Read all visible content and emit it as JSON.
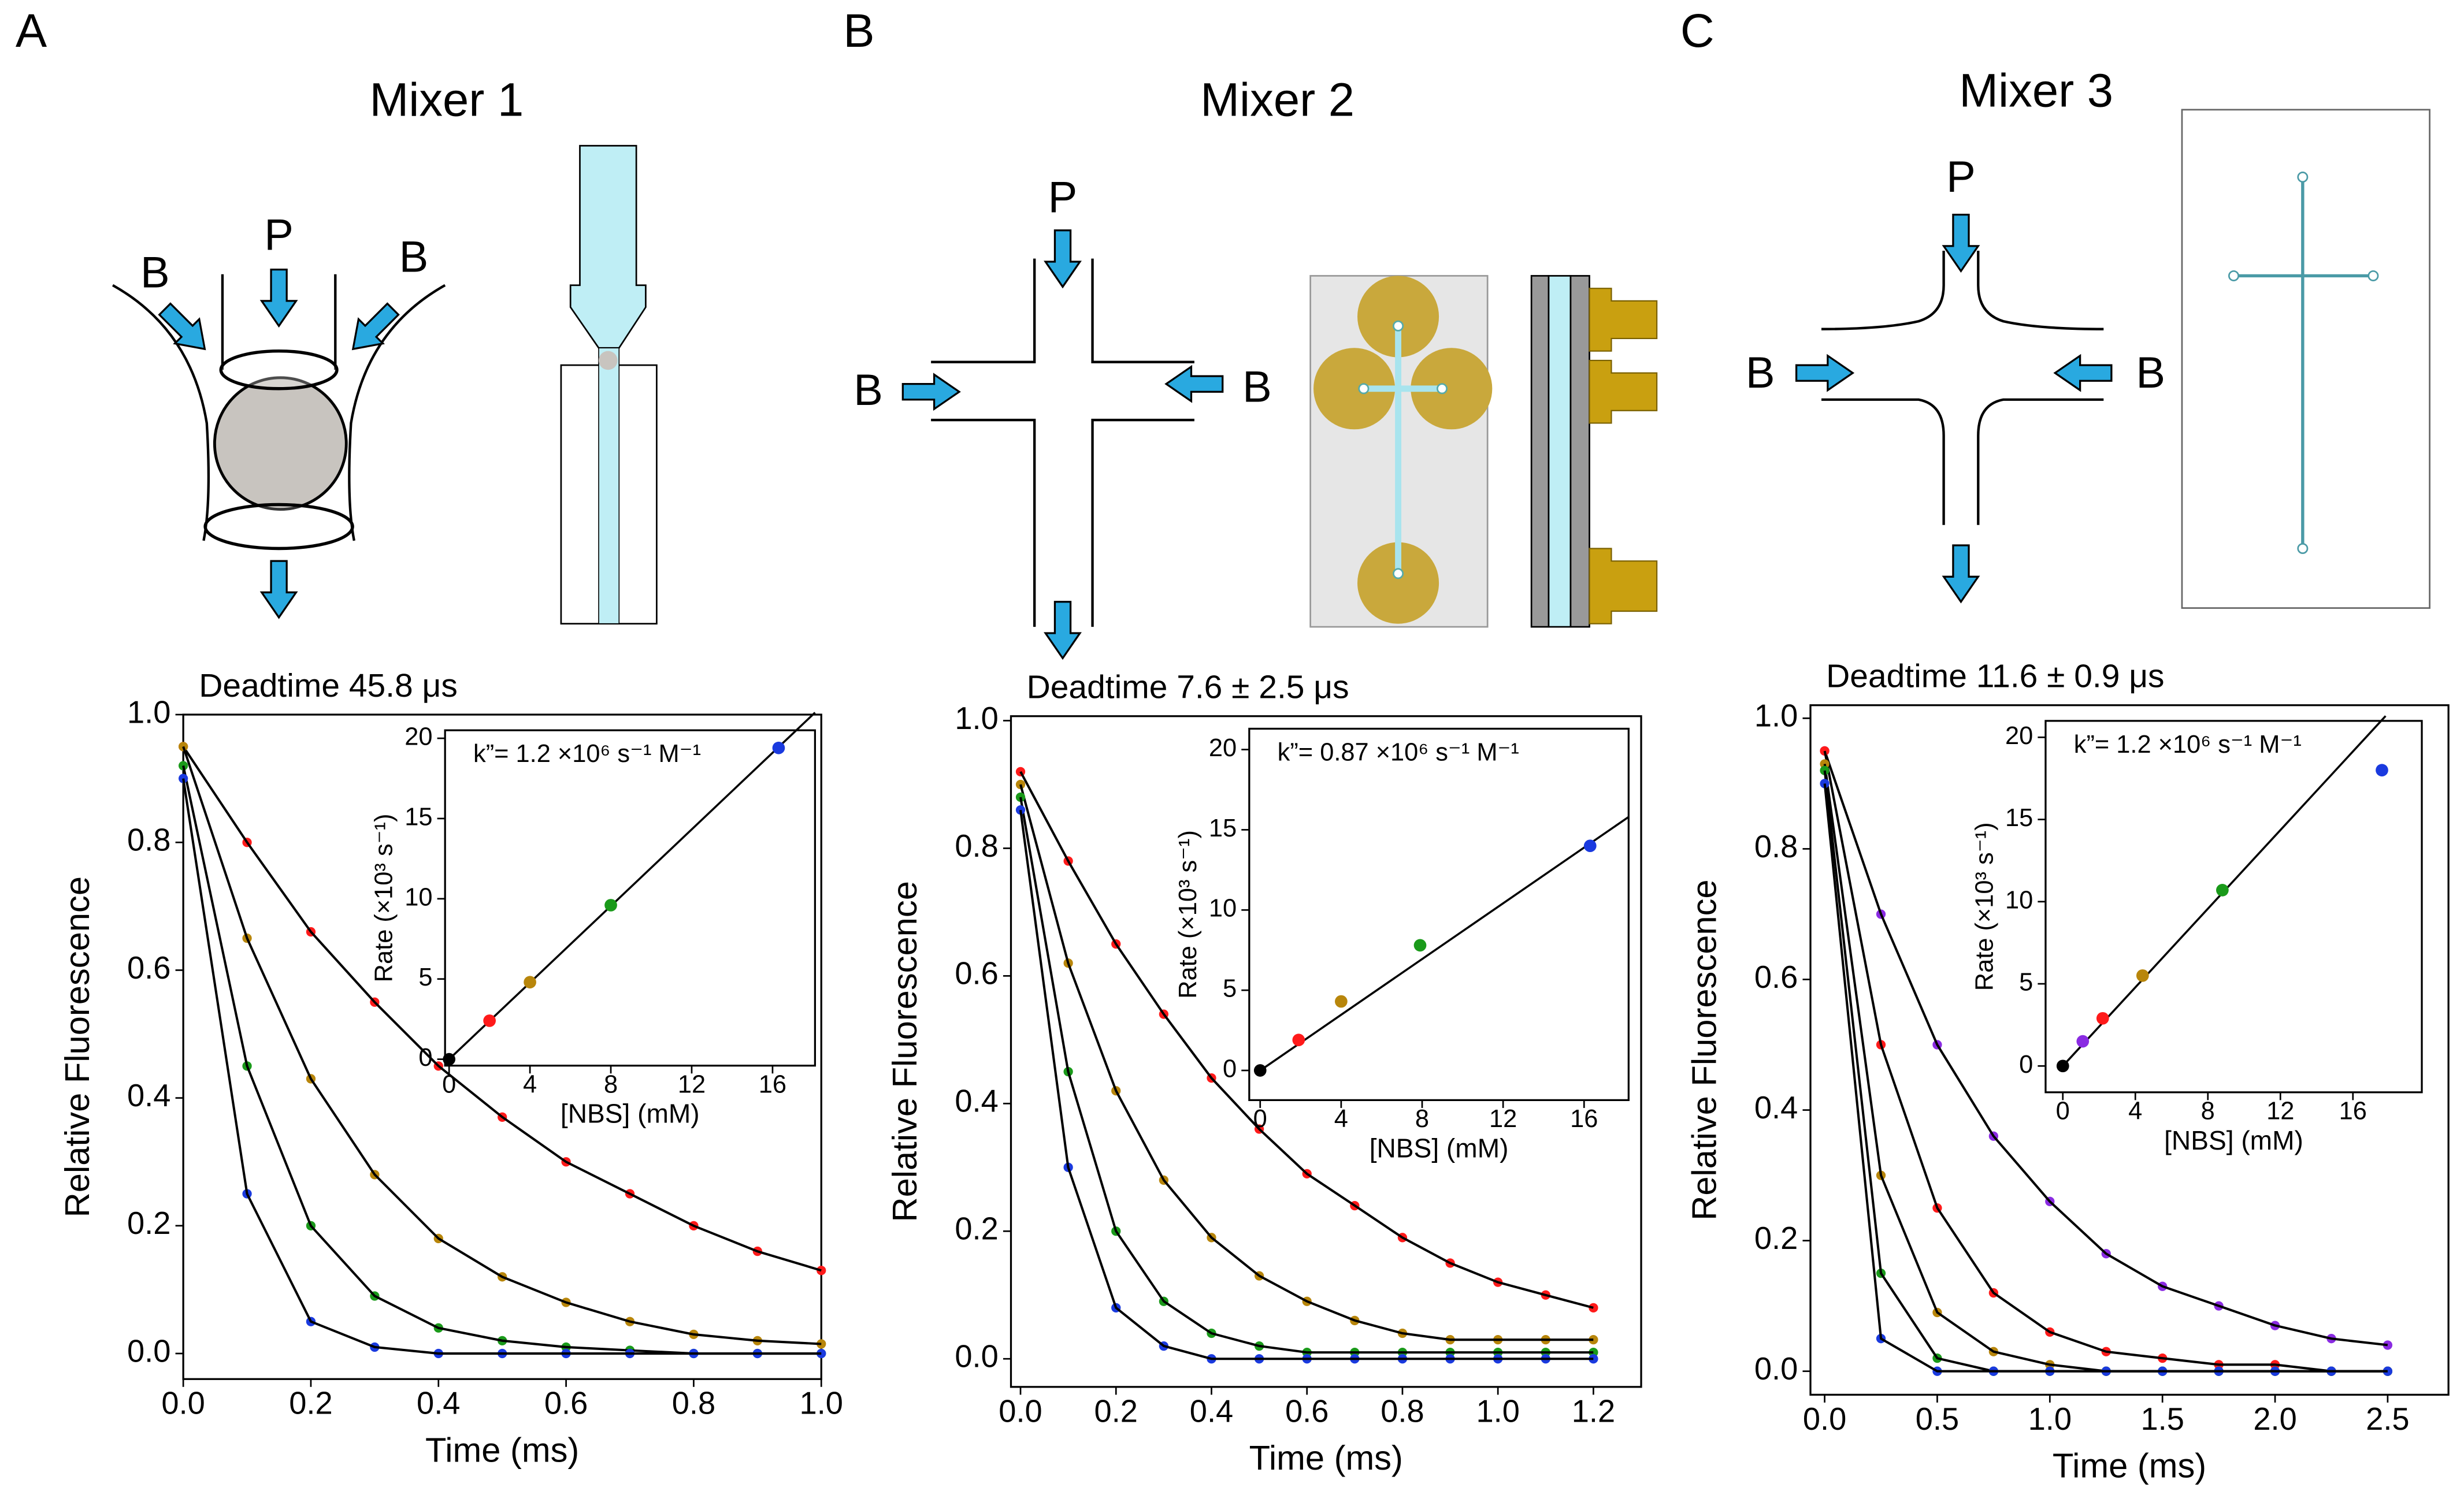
{
  "panels": [
    {
      "letter": "A",
      "heading": "Mixer 1",
      "labels": [
        "B",
        "P",
        "B"
      ]
    },
    {
      "letter": "B",
      "heading": "Mixer 2",
      "labels": [
        "B",
        "P",
        "B"
      ]
    },
    {
      "letter": "C",
      "heading": "Mixer 3",
      "labels": [
        "B",
        "P",
        "B"
      ]
    }
  ],
  "chart_data": [
    {
      "type": "line",
      "title": "Deadtime 45.8 μs",
      "xlabel": "Time (ms)",
      "ylabel": "Relative Fluorescence",
      "line_color": "#000000",
      "x": [
        0,
        0.1,
        0.2,
        0.3,
        0.4,
        0.5,
        0.6,
        0.7,
        0.8,
        0.9,
        1.0
      ],
      "series": [
        {
          "color": "#ff1a1a",
          "values": [
            0.95,
            0.8,
            0.66,
            0.55,
            0.45,
            0.37,
            0.3,
            0.25,
            0.2,
            0.16,
            0.13
          ]
        },
        {
          "color": "#b8860b",
          "values": [
            0.95,
            0.65,
            0.43,
            0.28,
            0.18,
            0.12,
            0.08,
            0.05,
            0.03,
            0.02,
            0.015
          ]
        },
        {
          "color": "#1a9a1a",
          "values": [
            0.92,
            0.45,
            0.2,
            0.09,
            0.04,
            0.02,
            0.01,
            0.005,
            0,
            0,
            0
          ]
        },
        {
          "color": "#1a3adf",
          "values": [
            0.9,
            0.25,
            0.05,
            0.01,
            0,
            0,
            0,
            0,
            0,
            0,
            0
          ]
        }
      ],
      "xlim": [
        0,
        1.0
      ],
      "ylim": [
        -0.04,
        1.0
      ],
      "xticks": [
        {
          "value": 0,
          "label": "0.0"
        },
        0.2,
        0.4,
        0.6,
        0.8,
        {
          "value": 1,
          "label": "1.0"
        }
      ],
      "yticks": [
        {
          "value": 0,
          "label": "0.0"
        },
        0.2,
        0.4,
        0.6,
        0.8,
        {
          "value": 1,
          "label": "1.0"
        }
      ]
    },
    {
      "type": "scatter",
      "annotation": "k”= 1.2 ×10⁶ s⁻¹ M⁻¹",
      "xlabel": "[NBS] (mM)",
      "ylabel": "Rate (×10³ s⁻¹)",
      "x": [
        0,
        2,
        4,
        8,
        16.3
      ],
      "values": [
        0,
        2.4,
        4.8,
        9.6,
        19.4
      ],
      "colors": [
        "#000000",
        "#ff1a1a",
        "#b8860b",
        "#1a9a1a",
        "#1a3adf"
      ],
      "fit": {
        "x": [
          0,
          18.1
        ],
        "values": [
          0,
          21.6
        ]
      },
      "xlim": [
        -0.2,
        18.1
      ],
      "ylim": [
        -0.4,
        20.5
      ],
      "xticks": [
        0,
        4,
        8,
        12,
        16
      ],
      "yticks": [
        0,
        5,
        10,
        15,
        20
      ]
    },
    {
      "type": "line",
      "title": "Deadtime 7.6 ± 2.5 μs",
      "xlabel": "Time (ms)",
      "ylabel": "Relative Fluorescence",
      "line_color": "#000000",
      "x": [
        0,
        0.1,
        0.2,
        0.3,
        0.4,
        0.5,
        0.6,
        0.7,
        0.8,
        0.9,
        1.0,
        1.1,
        1.2
      ],
      "series": [
        {
          "color": "#ff1a1a",
          "values": [
            0.92,
            0.78,
            0.65,
            0.54,
            0.44,
            0.36,
            0.29,
            0.24,
            0.19,
            0.15,
            0.12,
            0.1,
            0.08
          ]
        },
        {
          "color": "#b8860b",
          "values": [
            0.9,
            0.62,
            0.42,
            0.28,
            0.19,
            0.13,
            0.09,
            0.06,
            0.04,
            0.03,
            0.03,
            0.03,
            0.03
          ]
        },
        {
          "color": "#1a9a1a",
          "values": [
            0.88,
            0.45,
            0.2,
            0.09,
            0.04,
            0.02,
            0.01,
            0.01,
            0.01,
            0.01,
            0.01,
            0.01,
            0.01
          ]
        },
        {
          "color": "#1a3adf",
          "values": [
            0.86,
            0.3,
            0.08,
            0.02,
            0,
            0,
            0,
            0,
            0,
            0,
            0,
            0,
            0
          ]
        }
      ],
      "xlim": [
        -0.02,
        1.3
      ],
      "ylim": [
        -0.044,
        1.007
      ],
      "xticks": [
        {
          "value": 0,
          "label": "0.0"
        },
        0.2,
        0.4,
        0.6,
        0.8,
        {
          "value": 1,
          "label": "1.0"
        },
        1.2
      ],
      "yticks": [
        {
          "value": 0,
          "label": "0.0"
        },
        0.2,
        0.4,
        0.6,
        0.8,
        {
          "value": 1,
          "label": "1.0"
        }
      ]
    },
    {
      "type": "scatter",
      "annotation": "k”= 0.87 ×10⁶ s⁻¹ M⁻¹",
      "xlabel": "[NBS] (mM)",
      "ylabel": "Rate (×10³ s⁻¹)",
      "x": [
        0,
        1.9,
        4,
        7.9,
        16.3
      ],
      "values": [
        0,
        1.9,
        4.3,
        7.8,
        14.0
      ],
      "colors": [
        "#000000",
        "#ff1a1a",
        "#b8860b",
        "#1a9a1a",
        "#1a3adf"
      ],
      "fit": {
        "x": [
          0,
          18.2
        ],
        "values": [
          0,
          15.8
        ]
      },
      "xlim": [
        -0.54,
        18.2
      ],
      "ylim": [
        -1.85,
        21.3
      ],
      "xticks": [
        0,
        4,
        8,
        12,
        16
      ],
      "yticks": [
        0,
        5,
        10,
        15,
        20
      ]
    },
    {
      "type": "line",
      "title": "Deadtime 11.6 ± 0.9 μs",
      "xlabel": "Time (ms)",
      "ylabel": "Relative Fluorescence",
      "line_color": "#000000",
      "x": [
        0,
        0.25,
        0.5,
        0.75,
        1.0,
        1.25,
        1.5,
        1.75,
        2.0,
        2.25,
        2.5
      ],
      "series": [
        {
          "color": "#8a2be2",
          "values": [
            0.95,
            0.7,
            0.5,
            0.36,
            0.26,
            0.18,
            0.13,
            0.1,
            0.07,
            0.05,
            0.04
          ]
        },
        {
          "color": "#ff1a1a",
          "values": [
            0.95,
            0.5,
            0.25,
            0.12,
            0.06,
            0.03,
            0.02,
            0.01,
            0.01,
            0,
            0
          ]
        },
        {
          "color": "#b8860b",
          "values": [
            0.93,
            0.3,
            0.09,
            0.03,
            0.01,
            0,
            0,
            0,
            0,
            0,
            0
          ]
        },
        {
          "color": "#1a9a1a",
          "values": [
            0.92,
            0.15,
            0.02,
            0,
            0,
            0,
            0,
            0,
            0,
            0,
            0
          ]
        },
        {
          "color": "#1a3adf",
          "values": [
            0.9,
            0.05,
            0,
            0,
            0,
            0,
            0,
            0,
            0,
            0,
            0
          ]
        }
      ],
      "xlim": [
        -0.063,
        2.77
      ],
      "ylim": [
        -0.036,
        1.02
      ],
      "xticks": [
        {
          "value": 0,
          "label": "0.0"
        },
        0.5,
        {
          "value": 1,
          "label": "1.0"
        },
        1.5,
        {
          "value": 2,
          "label": "2.0"
        },
        2.5
      ],
      "yticks": [
        {
          "value": 0,
          "label": "0.0"
        },
        0.2,
        0.4,
        0.6,
        0.8,
        {
          "value": 1,
          "label": "1.0"
        }
      ]
    },
    {
      "type": "scatter",
      "annotation": "k”= 1.2 ×10⁶ s⁻¹ M⁻¹",
      "xlabel": "[NBS] (mM)",
      "ylabel": "Rate (×10³ s⁻¹)",
      "x": [
        0,
        1.1,
        2.2,
        4.4,
        8.8,
        17.6
      ],
      "values": [
        0,
        1.5,
        2.9,
        5.5,
        10.7,
        18.0
      ],
      "colors": [
        "#000000",
        "#8a2be2",
        "#ff1a1a",
        "#b8860b",
        "#1a9a1a",
        "#1a3adf"
      ],
      "fit": {
        "x": [
          0,
          17.8
        ],
        "values": [
          0,
          21.3
        ]
      },
      "xlim": [
        -0.95,
        19.8
      ],
      "ylim": [
        -1.6,
        21.0
      ],
      "xticks": [
        0,
        4,
        8,
        12,
        16
      ],
      "yticks": [
        0,
        5,
        10,
        15,
        20
      ]
    }
  ]
}
